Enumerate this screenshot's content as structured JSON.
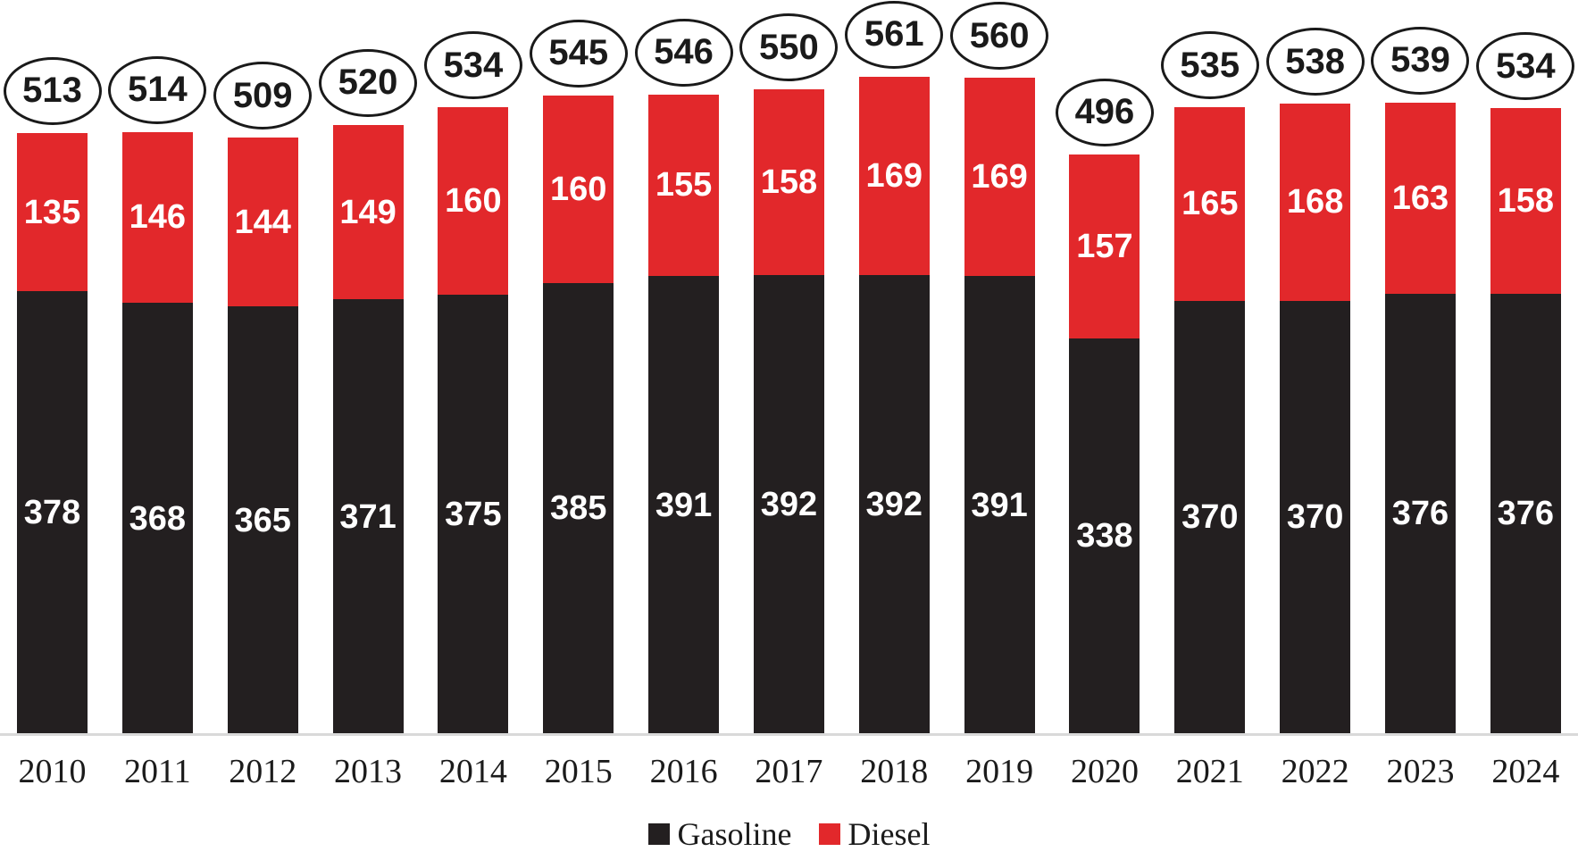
{
  "chart_data": {
    "type": "bar",
    "subtype": "stacked-column",
    "title": "",
    "categories": [
      "2010",
      "2011",
      "2012",
      "2013",
      "2014",
      "2015",
      "2016",
      "2017",
      "2018",
      "2019",
      "2020",
      "2021",
      "2022",
      "2023",
      "2024"
    ],
    "series": [
      {
        "name": "Gasoline",
        "color": "#231f20",
        "values": [
          378,
          368,
          365,
          371,
          375,
          385,
          391,
          392,
          392,
          391,
          338,
          370,
          370,
          376,
          376
        ]
      },
      {
        "name": "Diesel",
        "color": "#e2282b",
        "values": [
          135,
          146,
          144,
          149,
          160,
          160,
          155,
          158,
          169,
          169,
          157,
          165,
          168,
          163,
          158
        ]
      }
    ],
    "totals": [
      513,
      514,
      509,
      520,
      534,
      545,
      546,
      550,
      561,
      560,
      496,
      535,
      538,
      539,
      534
    ],
    "total_labels_style": "circled ovals above each bar",
    "value_labels": "white bold numbers centered inside each segment",
    "legend_position": "bottom-center",
    "grid": false,
    "y_axis_visible": false,
    "ylim": [
      0,
      575
    ]
  },
  "colors": {
    "background": "#ffffff",
    "baseline": "#d9d9d9",
    "oval_border": "#1a1a1a",
    "axis_text": "#1b1b1b"
  }
}
